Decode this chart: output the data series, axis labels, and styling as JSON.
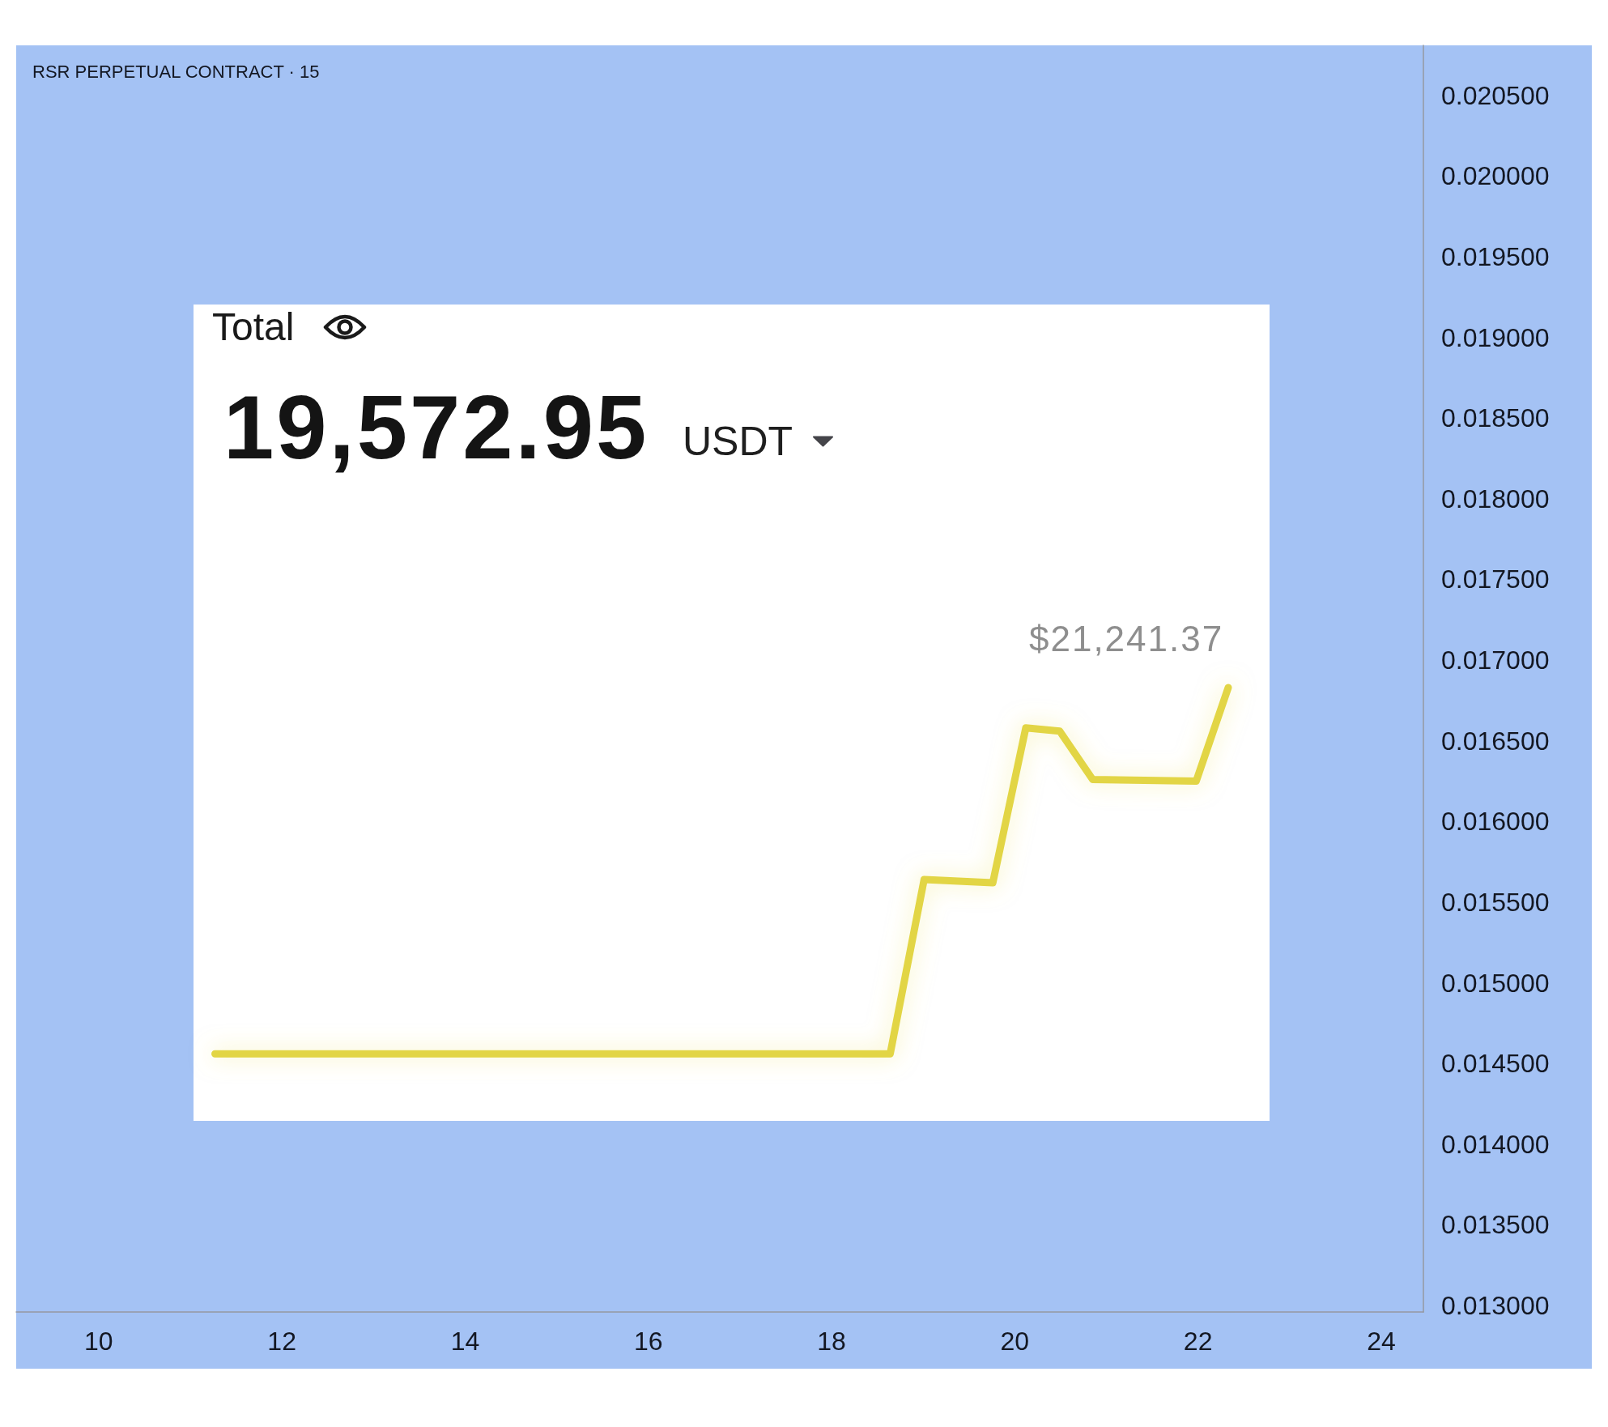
{
  "chart_data": {
    "type": "line",
    "title": "RSR PERPETUAL CONTRACT · 15",
    "x": [
      11.27,
      18.64,
      19.01,
      19.76,
      20.12,
      20.49,
      20.85,
      21.98,
      22.33
    ],
    "series": [
      {
        "color": "#e2d544",
        "values": [
          0.01456,
          0.01456,
          0.01564,
          0.01562,
          0.01658,
          0.01656,
          0.01626,
          0.01625,
          0.01683
        ]
      }
    ],
    "xlim": [
      9.1,
      24.46
    ],
    "xticks": [
      10,
      12,
      14,
      16,
      18,
      20,
      22,
      24
    ],
    "ylim": [
      0.01296,
      0.02081
    ],
    "yticks": [
      {
        "value": 0.013,
        "label": "0.013000"
      },
      {
        "value": 0.0135,
        "label": "0.013500"
      },
      {
        "value": 0.014,
        "label": "0.014000"
      },
      {
        "value": 0.0145,
        "label": "0.014500"
      },
      {
        "value": 0.015,
        "label": "0.015000"
      },
      {
        "value": 0.0155,
        "label": "0.015500"
      },
      {
        "value": 0.016,
        "label": "0.016000"
      },
      {
        "value": 0.0165,
        "label": "0.016500"
      },
      {
        "value": 0.017,
        "label": "0.017000"
      },
      {
        "value": 0.0175,
        "label": "0.017500"
      },
      {
        "value": 0.018,
        "label": "0.018000"
      },
      {
        "value": 0.0185,
        "label": "0.018500"
      },
      {
        "value": 0.019,
        "label": "0.019000"
      },
      {
        "value": 0.0195,
        "label": "0.019500"
      },
      {
        "value": 0.02,
        "label": "0.020000"
      },
      {
        "value": 0.0205,
        "label": "0.020500"
      }
    ],
    "annotations": [
      "Total",
      "19,572.95",
      "USDT",
      {
        "text": "$21,241.37",
        "x": 22.33,
        "y": 0.01683
      }
    ],
    "marker": "none",
    "line_style": "solid"
  }
}
